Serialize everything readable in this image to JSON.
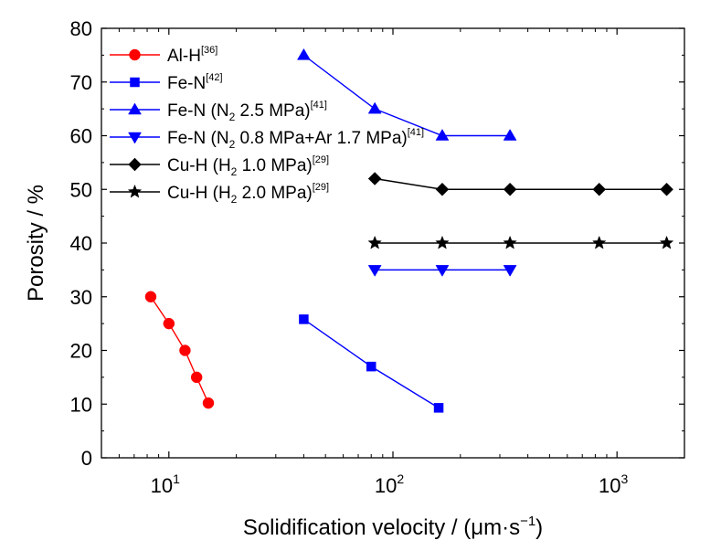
{
  "chart_data": {
    "type": "scatter",
    "x_scale": "log",
    "xlim": [
      5,
      2000
    ],
    "ylim": [
      0,
      80
    ],
    "xlabel": {
      "pre": "Solidification velocity / (",
      "mu": "μ",
      "unit": "m·s",
      "sup": "−1",
      "post": ")"
    },
    "ylabel": "Porosity / %",
    "x_ticks": [
      {
        "value": 10,
        "base": "10",
        "exp": "1"
      },
      {
        "value": 100,
        "base": "10",
        "exp": "2"
      },
      {
        "value": 1000,
        "base": "10",
        "exp": "3"
      }
    ],
    "y_ticks": [
      0,
      10,
      20,
      30,
      40,
      50,
      60,
      70,
      80
    ],
    "legend_position": "top-left",
    "series": [
      {
        "name": "Al-H",
        "legend": [
          {
            "t": "Al-H"
          },
          {
            "t": "[36]",
            "s": "sup"
          }
        ],
        "color": "#ff0000",
        "marker": "circle",
        "points": [
          [
            8.3,
            30
          ],
          [
            10,
            25
          ],
          [
            11.8,
            20
          ],
          [
            13.3,
            15
          ],
          [
            15,
            10.2
          ]
        ]
      },
      {
        "name": "Fe-N",
        "legend": [
          {
            "t": "Fe-N"
          },
          {
            "t": "[42]",
            "s": "sup"
          }
        ],
        "color": "#0000ff",
        "marker": "square",
        "points": [
          [
            40,
            25.8
          ],
          [
            80,
            17
          ],
          [
            160,
            9.3
          ]
        ]
      },
      {
        "name": "Fe-N (N2 2.5 MPa)",
        "legend": [
          {
            "t": "Fe-N (N"
          },
          {
            "t": "2",
            "s": "sub"
          },
          {
            "t": " 2.5 MPa)"
          },
          {
            "t": "[41]",
            "s": "sup"
          }
        ],
        "color": "#0000ff",
        "marker": "triangle-up",
        "points": [
          [
            40,
            75
          ],
          [
            83,
            65
          ],
          [
            166,
            60
          ],
          [
            333,
            60
          ]
        ]
      },
      {
        "name": "Fe-N (N2 0.8 MPa+Ar 1.7 MPa)",
        "legend": [
          {
            "t": "Fe-N (N"
          },
          {
            "t": "2",
            "s": "sub"
          },
          {
            "t": " 0.8 MPa+Ar 1.7 MPa)"
          },
          {
            "t": "[41]",
            "s": "sup"
          }
        ],
        "color": "#0000ff",
        "marker": "triangle-down",
        "points": [
          [
            83,
            35
          ],
          [
            166,
            35
          ],
          [
            333,
            35
          ]
        ]
      },
      {
        "name": "Cu-H (H2 1.0 MPa)",
        "legend": [
          {
            "t": "Cu-H (H"
          },
          {
            "t": "2",
            "s": "sub"
          },
          {
            "t": " 1.0 MPa)"
          },
          {
            "t": "[29]",
            "s": "sup"
          }
        ],
        "color": "#000000",
        "marker": "diamond",
        "points": [
          [
            83,
            52
          ],
          [
            166,
            50
          ],
          [
            333,
            50
          ],
          [
            833,
            50
          ],
          [
            1666,
            50
          ]
        ]
      },
      {
        "name": "Cu-H (H2 2.0 MPa)",
        "legend": [
          {
            "t": "Cu-H (H"
          },
          {
            "t": "2",
            "s": "sub"
          },
          {
            "t": " 2.0 MPa)"
          },
          {
            "t": "[29]",
            "s": "sup"
          }
        ],
        "color": "#000000",
        "marker": "star",
        "points": [
          [
            83,
            40
          ],
          [
            166,
            40
          ],
          [
            333,
            40
          ],
          [
            833,
            40
          ],
          [
            1666,
            40
          ]
        ]
      }
    ]
  }
}
